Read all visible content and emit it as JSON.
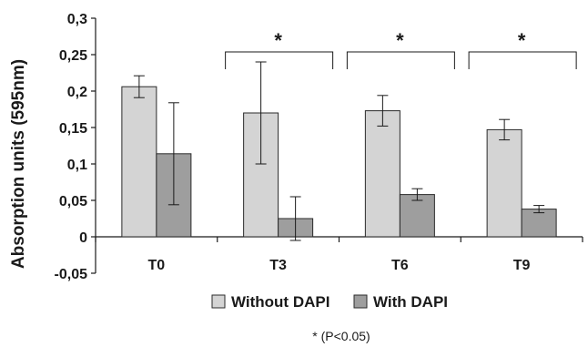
{
  "chart_data": {
    "type": "bar",
    "categories": [
      "T0",
      "T3",
      "T6",
      "T9"
    ],
    "series": [
      {
        "name": "Without DAPI",
        "color": "#d4d4d4",
        "values": [
          0.206,
          0.17,
          0.173,
          0.147
        ],
        "errors": [
          0.015,
          0.07,
          0.021,
          0.014
        ]
      },
      {
        "name": "With DAPI",
        "color": "#9e9e9e",
        "values": [
          0.114,
          0.025,
          0.058,
          0.038
        ],
        "errors": [
          0.07,
          0.03,
          0.008,
          0.005
        ]
      }
    ],
    "ylabel": "Absorption units (595nm)",
    "xlabel": "",
    "ylim": [
      -0.05,
      0.3
    ],
    "yticks": [
      -0.05,
      0,
      0.05,
      0.1,
      0.15,
      0.2,
      0.25,
      0.3
    ],
    "ytick_labels": [
      "-0,05",
      "0",
      "0,05",
      "0,1",
      "0,15",
      "0,2",
      "0,25",
      "0,3"
    ],
    "significance": [
      {
        "categories": [
          "T3"
        ],
        "label": "*"
      },
      {
        "categories": [
          "T6"
        ],
        "label": "*"
      },
      {
        "categories": [
          "T9"
        ],
        "label": "*"
      }
    ],
    "footnote": "* (P<0.05)",
    "legend_position": "bottom",
    "grid": false
  }
}
